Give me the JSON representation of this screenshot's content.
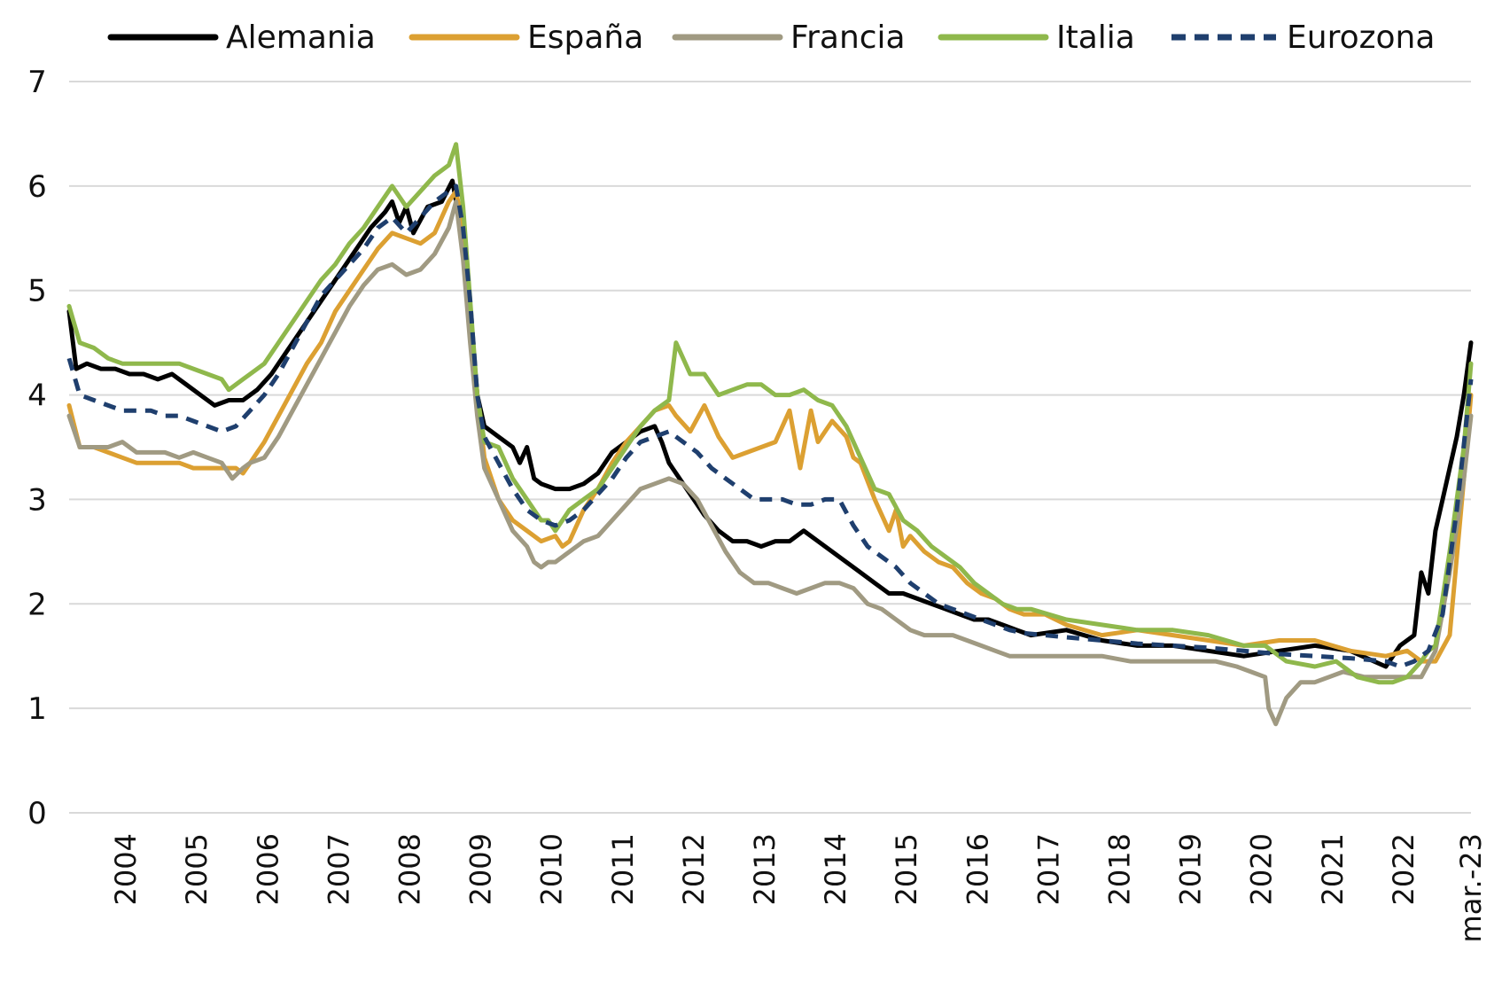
{
  "chart_data": {
    "type": "line",
    "title": "",
    "xlabel": "",
    "ylabel": "",
    "ylim": [
      0,
      7
    ],
    "yticks": [
      "0",
      "1",
      "2",
      "3",
      "4",
      "5",
      "6",
      "7"
    ],
    "xlim": [
      2003.45,
      2023.2
    ],
    "grid": true,
    "legend_position": "top",
    "x_tick_labels": [
      "2004",
      "2005",
      "2006",
      "2007",
      "2008",
      "2009",
      "2010",
      "2011",
      "2012",
      "2013",
      "2014",
      "2015",
      "2016",
      "2017",
      "2018",
      "2019",
      "2020",
      "2021",
      "2022",
      "mar.-23"
    ],
    "x_tick_positions": [
      2004.25,
      2005.25,
      2006.25,
      2007.25,
      2008.25,
      2009.25,
      2010.25,
      2011.25,
      2012.25,
      2013.25,
      2014.25,
      2015.25,
      2016.25,
      2017.25,
      2018.25,
      2019.25,
      2020.25,
      2021.25,
      2022.25,
      2023.2
    ],
    "series": [
      {
        "name": "Alemania",
        "color": "#000000",
        "dash": false,
        "x": [
          2003.45,
          2003.55,
          2003.7,
          2003.9,
          2004.1,
          2004.3,
          2004.5,
          2004.7,
          2004.9,
          2005.1,
          2005.3,
          2005.5,
          2005.7,
          2005.9,
          2006.1,
          2006.3,
          2006.5,
          2006.7,
          2006.9,
          2007.1,
          2007.3,
          2007.5,
          2007.7,
          2007.9,
          2008.0,
          2008.1,
          2008.2,
          2008.3,
          2008.5,
          2008.7,
          2008.85,
          2009.0,
          2009.1,
          2009.2,
          2009.3,
          2009.5,
          2009.7,
          2009.8,
          2009.9,
          2010.0,
          2010.1,
          2010.3,
          2010.5,
          2010.7,
          2010.9,
          2011.1,
          2011.3,
          2011.5,
          2011.7,
          2011.8,
          2011.9,
          2012.0,
          2012.2,
          2012.4,
          2012.6,
          2012.8,
          2013.0,
          2013.2,
          2013.4,
          2013.6,
          2013.8,
          2014.0,
          2014.2,
          2014.4,
          2014.6,
          2014.8,
          2015.0,
          2015.2,
          2015.4,
          2015.6,
          2015.8,
          2016.0,
          2016.2,
          2016.4,
          2016.6,
          2016.8,
          2017.0,
          2017.5,
          2018.0,
          2018.5,
          2019.0,
          2019.5,
          2020.0,
          2020.5,
          2021.0,
          2021.5,
          2022.0,
          2022.2,
          2022.4,
          2022.5,
          2022.6,
          2022.7,
          2022.8,
          2022.9,
          2023.0,
          2023.1,
          2023.2
        ],
        "values": [
          4.8,
          4.25,
          4.3,
          4.25,
          4.25,
          4.2,
          4.2,
          4.15,
          4.2,
          4.1,
          4.0,
          3.9,
          3.95,
          3.95,
          4.05,
          4.2,
          4.4,
          4.6,
          4.8,
          5.0,
          5.2,
          5.4,
          5.6,
          5.75,
          5.85,
          5.65,
          5.8,
          5.55,
          5.8,
          5.85,
          6.05,
          5.5,
          4.8,
          4.0,
          3.7,
          3.6,
          3.5,
          3.35,
          3.5,
          3.2,
          3.15,
          3.1,
          3.1,
          3.15,
          3.25,
          3.45,
          3.55,
          3.65,
          3.7,
          3.55,
          3.35,
          3.25,
          3.05,
          2.85,
          2.7,
          2.6,
          2.6,
          2.55,
          2.6,
          2.6,
          2.7,
          2.6,
          2.5,
          2.4,
          2.3,
          2.2,
          2.1,
          2.1,
          2.05,
          2.0,
          1.95,
          1.9,
          1.85,
          1.85,
          1.8,
          1.75,
          1.7,
          1.75,
          1.65,
          1.6,
          1.6,
          1.55,
          1.5,
          1.55,
          1.6,
          1.55,
          1.4,
          1.6,
          1.7,
          2.3,
          2.1,
          2.7,
          3.0,
          3.3,
          3.6,
          4.0,
          4.5
        ]
      },
      {
        "name": "España",
        "color": "#dca032",
        "dash": false,
        "x": [
          2003.45,
          2003.6,
          2003.8,
          2004.0,
          2004.2,
          2004.4,
          2004.6,
          2004.8,
          2005.0,
          2005.2,
          2005.4,
          2005.6,
          2005.8,
          2005.9,
          2006.0,
          2006.2,
          2006.4,
          2006.6,
          2006.8,
          2007.0,
          2007.2,
          2007.4,
          2007.6,
          2007.8,
          2008.0,
          2008.2,
          2008.4,
          2008.6,
          2008.8,
          2008.9,
          2009.0,
          2009.1,
          2009.2,
          2009.3,
          2009.5,
          2009.7,
          2009.9,
          2010.1,
          2010.3,
          2010.4,
          2010.5,
          2010.7,
          2010.9,
          2011.1,
          2011.3,
          2011.5,
          2011.7,
          2011.9,
          2012.0,
          2012.2,
          2012.4,
          2012.6,
          2012.8,
          2013.0,
          2013.2,
          2013.4,
          2013.6,
          2013.75,
          2013.9,
          2014.0,
          2014.2,
          2014.4,
          2014.5,
          2014.6,
          2014.8,
          2015.0,
          2015.1,
          2015.2,
          2015.3,
          2015.5,
          2015.7,
          2015.9,
          2016.1,
          2016.3,
          2016.5,
          2016.7,
          2016.9,
          2017.2,
          2017.5,
          2018.0,
          2018.5,
          2019.0,
          2019.5,
          2020.0,
          2020.5,
          2021.0,
          2021.5,
          2022.0,
          2022.3,
          2022.5,
          2022.7,
          2022.9,
          2023.1,
          2023.2
        ],
        "values": [
          3.9,
          3.5,
          3.5,
          3.45,
          3.4,
          3.35,
          3.35,
          3.35,
          3.35,
          3.3,
          3.3,
          3.3,
          3.3,
          3.25,
          3.35,
          3.55,
          3.8,
          4.05,
          4.3,
          4.5,
          4.8,
          5.0,
          5.2,
          5.4,
          5.55,
          5.5,
          5.45,
          5.55,
          5.85,
          5.95,
          5.6,
          4.8,
          4.0,
          3.4,
          3.0,
          2.8,
          2.7,
          2.6,
          2.65,
          2.55,
          2.6,
          2.9,
          3.1,
          3.35,
          3.55,
          3.7,
          3.85,
          3.9,
          3.8,
          3.65,
          3.9,
          3.6,
          3.4,
          3.45,
          3.5,
          3.55,
          3.85,
          3.3,
          3.85,
          3.55,
          3.75,
          3.6,
          3.4,
          3.35,
          3.0,
          2.7,
          2.9,
          2.55,
          2.65,
          2.5,
          2.4,
          2.35,
          2.2,
          2.1,
          2.05,
          1.95,
          1.9,
          1.9,
          1.8,
          1.7,
          1.75,
          1.7,
          1.65,
          1.6,
          1.65,
          1.65,
          1.55,
          1.5,
          1.55,
          1.45,
          1.45,
          1.7,
          3.2,
          4.0
        ]
      },
      {
        "name": "Francia",
        "color": "#a09a82",
        "dash": false,
        "x": [
          2003.45,
          2003.6,
          2003.8,
          2004.0,
          2004.2,
          2004.4,
          2004.6,
          2004.8,
          2005.0,
          2005.2,
          2005.4,
          2005.6,
          2005.75,
          2005.9,
          2006.0,
          2006.2,
          2006.4,
          2006.6,
          2006.8,
          2007.0,
          2007.2,
          2007.4,
          2007.6,
          2007.8,
          2008.0,
          2008.2,
          2008.4,
          2008.6,
          2008.8,
          2008.9,
          2009.0,
          2009.1,
          2009.2,
          2009.3,
          2009.5,
          2009.7,
          2009.9,
          2010.0,
          2010.1,
          2010.2,
          2010.3,
          2010.5,
          2010.7,
          2010.9,
          2011.1,
          2011.3,
          2011.5,
          2011.7,
          2011.9,
          2012.1,
          2012.3,
          2012.5,
          2012.7,
          2012.9,
          2013.1,
          2013.3,
          2013.5,
          2013.7,
          2013.9,
          2014.1,
          2014.3,
          2014.5,
          2014.7,
          2014.9,
          2015.1,
          2015.3,
          2015.5,
          2015.7,
          2015.9,
          2016.1,
          2016.3,
          2016.5,
          2016.7,
          2016.9,
          2017.1,
          2017.4,
          2017.7,
          2018.0,
          2018.4,
          2018.8,
          2019.2,
          2019.6,
          2019.9,
          2020.1,
          2020.3,
          2020.35,
          2020.45,
          2020.6,
          2020.8,
          2021.0,
          2021.2,
          2021.4,
          2021.7,
          2021.9,
          2022.1,
          2022.3,
          2022.5,
          2022.7,
          2022.9,
          2023.1,
          2023.2
        ],
        "values": [
          3.8,
          3.5,
          3.5,
          3.5,
          3.55,
          3.45,
          3.45,
          3.45,
          3.4,
          3.45,
          3.4,
          3.35,
          3.2,
          3.3,
          3.35,
          3.4,
          3.6,
          3.85,
          4.1,
          4.35,
          4.6,
          4.85,
          5.05,
          5.2,
          5.25,
          5.15,
          5.2,
          5.35,
          5.6,
          5.85,
          5.3,
          4.5,
          3.8,
          3.3,
          3.0,
          2.7,
          2.55,
          2.4,
          2.35,
          2.4,
          2.4,
          2.5,
          2.6,
          2.65,
          2.8,
          2.95,
          3.1,
          3.15,
          3.2,
          3.15,
          3.0,
          2.75,
          2.5,
          2.3,
          2.2,
          2.2,
          2.15,
          2.1,
          2.15,
          2.2,
          2.2,
          2.15,
          2.0,
          1.95,
          1.85,
          1.75,
          1.7,
          1.7,
          1.7,
          1.65,
          1.6,
          1.55,
          1.5,
          1.5,
          1.5,
          1.5,
          1.5,
          1.5,
          1.45,
          1.45,
          1.45,
          1.45,
          1.4,
          1.35,
          1.3,
          1.0,
          0.85,
          1.1,
          1.25,
          1.25,
          1.3,
          1.35,
          1.3,
          1.3,
          1.3,
          1.3,
          1.3,
          1.55,
          2.3,
          3.2,
          3.8
        ]
      },
      {
        "name": "Italia",
        "color": "#8fb84c",
        "dash": false,
        "x": [
          2003.45,
          2003.6,
          2003.8,
          2004.0,
          2004.2,
          2004.4,
          2004.6,
          2004.8,
          2005.0,
          2005.2,
          2005.4,
          2005.6,
          2005.7,
          2005.9,
          2006.0,
          2006.2,
          2006.4,
          2006.6,
          2006.8,
          2007.0,
          2007.2,
          2007.4,
          2007.6,
          2007.8,
          2008.0,
          2008.2,
          2008.4,
          2008.6,
          2008.8,
          2008.9,
          2009.0,
          2009.1,
          2009.2,
          2009.3,
          2009.5,
          2009.7,
          2009.9,
          2010.1,
          2010.2,
          2010.3,
          2010.5,
          2010.7,
          2010.9,
          2011.1,
          2011.3,
          2011.5,
          2011.7,
          2011.9,
          2012.0,
          2012.2,
          2012.4,
          2012.6,
          2012.8,
          2013.0,
          2013.2,
          2013.4,
          2013.6,
          2013.8,
          2014.0,
          2014.2,
          2014.4,
          2014.6,
          2014.8,
          2015.0,
          2015.2,
          2015.4,
          2015.6,
          2015.8,
          2016.0,
          2016.2,
          2016.4,
          2016.6,
          2016.8,
          2017.0,
          2017.5,
          2018.0,
          2018.5,
          2019.0,
          2019.5,
          2020.0,
          2020.3,
          2020.6,
          2021.0,
          2021.3,
          2021.6,
          2021.9,
          2022.1,
          2022.3,
          2022.5,
          2022.6,
          2022.7,
          2022.9,
          2023.1,
          2023.2
        ],
        "values": [
          4.85,
          4.5,
          4.45,
          4.35,
          4.3,
          4.3,
          4.3,
          4.3,
          4.3,
          4.25,
          4.2,
          4.15,
          4.05,
          4.15,
          4.2,
          4.3,
          4.5,
          4.7,
          4.9,
          5.1,
          5.25,
          5.45,
          5.6,
          5.8,
          6.0,
          5.8,
          5.95,
          6.1,
          6.2,
          6.4,
          5.8,
          4.9,
          4.0,
          3.55,
          3.5,
          3.2,
          3.0,
          2.8,
          2.8,
          2.7,
          2.9,
          3.0,
          3.1,
          3.3,
          3.5,
          3.7,
          3.85,
          3.95,
          4.5,
          4.2,
          4.2,
          4.0,
          4.05,
          4.1,
          4.1,
          4.0,
          4.0,
          4.05,
          3.95,
          3.9,
          3.7,
          3.4,
          3.1,
          3.05,
          2.8,
          2.7,
          2.55,
          2.45,
          2.35,
          2.2,
          2.1,
          2.0,
          1.95,
          1.95,
          1.85,
          1.8,
          1.75,
          1.75,
          1.7,
          1.6,
          1.6,
          1.45,
          1.4,
          1.45,
          1.3,
          1.25,
          1.25,
          1.3,
          1.45,
          1.55,
          1.6,
          2.5,
          3.5,
          4.3
        ]
      },
      {
        "name": "Eurozona",
        "color": "#1f3f6e",
        "dash": true,
        "x": [
          2003.45,
          2003.6,
          2003.8,
          2004.0,
          2004.2,
          2004.4,
          2004.6,
          2004.8,
          2005.0,
          2005.2,
          2005.4,
          2005.6,
          2005.8,
          2006.0,
          2006.2,
          2006.4,
          2006.6,
          2006.8,
          2007.0,
          2007.2,
          2007.4,
          2007.6,
          2007.8,
          2008.0,
          2008.2,
          2008.4,
          2008.6,
          2008.8,
          2008.9,
          2009.0,
          2009.1,
          2009.2,
          2009.3,
          2009.5,
          2009.7,
          2009.9,
          2010.1,
          2010.3,
          2010.5,
          2010.7,
          2010.9,
          2011.1,
          2011.3,
          2011.5,
          2011.7,
          2011.9,
          2012.1,
          2012.3,
          2012.5,
          2012.7,
          2012.9,
          2013.1,
          2013.3,
          2013.5,
          2013.7,
          2013.9,
          2014.1,
          2014.3,
          2014.5,
          2014.7,
          2014.9,
          2015.1,
          2015.3,
          2015.5,
          2015.7,
          2015.9,
          2016.1,
          2016.3,
          2016.5,
          2016.7,
          2016.9,
          2017.2,
          2017.5,
          2018.0,
          2018.5,
          2019.0,
          2019.5,
          2020.0,
          2020.5,
          2021.0,
          2021.5,
          2022.0,
          2022.2,
          2022.4,
          2022.6,
          2022.8,
          2023.0,
          2023.2
        ],
        "values": [
          4.35,
          4.0,
          3.95,
          3.9,
          3.85,
          3.85,
          3.85,
          3.8,
          3.8,
          3.75,
          3.7,
          3.65,
          3.7,
          3.85,
          4.0,
          4.2,
          4.45,
          4.7,
          4.95,
          5.1,
          5.25,
          5.4,
          5.6,
          5.7,
          5.55,
          5.7,
          5.85,
          5.95,
          6.0,
          5.6,
          4.9,
          4.0,
          3.6,
          3.35,
          3.1,
          2.9,
          2.8,
          2.75,
          2.8,
          2.9,
          3.05,
          3.2,
          3.4,
          3.55,
          3.6,
          3.65,
          3.55,
          3.45,
          3.3,
          3.2,
          3.1,
          3.0,
          3.0,
          3.0,
          2.95,
          2.95,
          3.0,
          3.0,
          2.75,
          2.55,
          2.45,
          2.35,
          2.2,
          2.1,
          2.0,
          1.95,
          1.9,
          1.85,
          1.8,
          1.75,
          1.72,
          1.7,
          1.68,
          1.65,
          1.62,
          1.6,
          1.58,
          1.55,
          1.52,
          1.5,
          1.48,
          1.45,
          1.4,
          1.45,
          1.55,
          1.9,
          2.9,
          4.15
        ]
      }
    ]
  }
}
